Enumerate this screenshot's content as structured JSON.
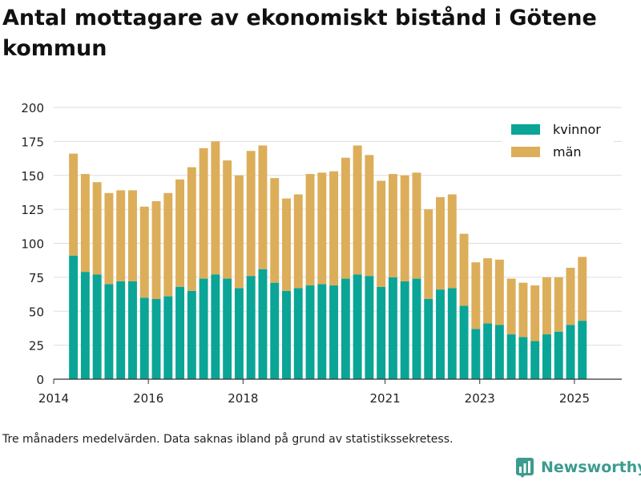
{
  "title": "Antal mottagare av ekonomiskt bistånd i Götene kommun",
  "footnote": "Tre månaders medelvärden. Data saknas ibland på grund av statistikssekretess.",
  "brand": {
    "name": "Newsworthy",
    "icon": "newsworthy-bar-logo-icon"
  },
  "colors": {
    "kvinnor": "#0aa596",
    "man": "#dcae5a",
    "grid": "#dddddd",
    "axis": "#333333",
    "brand": "#3d9b8f"
  },
  "chart_data": {
    "type": "bar",
    "stacked": true,
    "title": "Antal mottagare av ekonomiskt bistånd i Götene kommun",
    "xlabel": "",
    "ylabel": "",
    "ylim": [
      0,
      200
    ],
    "yticks": [
      "0",
      "25",
      "50",
      "75",
      "100",
      "125",
      "150",
      "175",
      "200"
    ],
    "xticks": [
      "2014",
      "2016",
      "2018",
      "2021",
      "2023",
      "2025"
    ],
    "xlim": [
      "2014-01",
      "2025-12"
    ],
    "grid": true,
    "legend_position": "top-right",
    "categories": [
      "2014-06",
      "2014-09",
      "2014-12",
      "2015-03",
      "2015-06",
      "2015-09",
      "2015-12",
      "2016-03",
      "2016-06",
      "2016-09",
      "2016-12",
      "2017-03",
      "2017-06",
      "2017-09",
      "2017-12",
      "2018-03",
      "2018-06",
      "2018-09",
      "2018-12",
      "2019-03",
      "2019-06",
      "2019-09",
      "2019-12",
      "2020-03",
      "2020-06",
      "2020-09",
      "2020-12",
      "2021-03",
      "2021-06",
      "2021-09",
      "2021-12",
      "2022-03",
      "2022-06",
      "2022-09",
      "2022-12",
      "2023-03",
      "2023-06",
      "2023-09",
      "2023-12",
      "2024-03",
      "2024-06",
      "2024-09",
      "2024-12",
      "2025-03",
      "2025-06"
    ],
    "series": [
      {
        "name": "kvinnor",
        "color": "#0aa596",
        "values": [
          91,
          79,
          77,
          70,
          72,
          72,
          60,
          59,
          61,
          68,
          65,
          74,
          77,
          74,
          67,
          76,
          81,
          71,
          65,
          67,
          69,
          70,
          69,
          74,
          77,
          76,
          68,
          75,
          72,
          74,
          59,
          66,
          67,
          54,
          37,
          41,
          40,
          33,
          31,
          28,
          33,
          35,
          40,
          43,
          0
        ]
      },
      {
        "name": "män",
        "color": "#dcae5a",
        "values": [
          75,
          72,
          68,
          67,
          67,
          67,
          67,
          72,
          76,
          79,
          91,
          96,
          98,
          87,
          83,
          92,
          91,
          77,
          68,
          69,
          82,
          82,
          84,
          89,
          95,
          89,
          78,
          76,
          78,
          78,
          66,
          68,
          69,
          53,
          49,
          48,
          48,
          41,
          40,
          41,
          42,
          40,
          42,
          47,
          0
        ]
      }
    ]
  }
}
